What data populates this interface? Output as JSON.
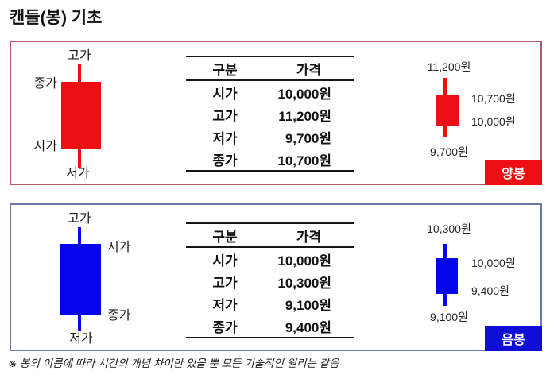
{
  "title": "캔들(봉) 기초",
  "footnote": "※ 봉의 이름에 따라 시간의 개념 차이만 있을 뿐 모든 기술적인 원리는 같음",
  "colors": {
    "bullish_red": "#ee0f14",
    "bearish_blue": "#0404ef",
    "bullish_panel_border": "#b45a69",
    "bearish_panel_border": "#6f79a8",
    "badge_text": "#ffffff"
  },
  "table_header": {
    "category": "구분",
    "price": "가격"
  },
  "bullish": {
    "badge": "양봉",
    "diagram": {
      "high": "고가",
      "close": "종가",
      "open": "시가",
      "low": "저가"
    },
    "table_rows": [
      {
        "label": "시가",
        "value": "10,000원"
      },
      {
        "label": "고가",
        "value": "11,200원"
      },
      {
        "label": "저가",
        "value": "9,700원"
      },
      {
        "label": "종가",
        "value": "10,700원"
      }
    ],
    "mini": {
      "high": "11,200원",
      "close": "10,700원",
      "open": "10,000원",
      "low": "9,700원"
    }
  },
  "bearish": {
    "badge": "음봉",
    "diagram": {
      "high": "고가",
      "open": "시가",
      "close": "종가",
      "low": "저가"
    },
    "table_rows": [
      {
        "label": "시가",
        "value": "10,000원"
      },
      {
        "label": "고가",
        "value": "10,300원"
      },
      {
        "label": "저가",
        "value": "9,100원"
      },
      {
        "label": "종가",
        "value": "9,400원"
      }
    ],
    "mini": {
      "high": "10,300원",
      "open": "10,000원",
      "close": "9,400원",
      "low": "9,100원"
    }
  }
}
